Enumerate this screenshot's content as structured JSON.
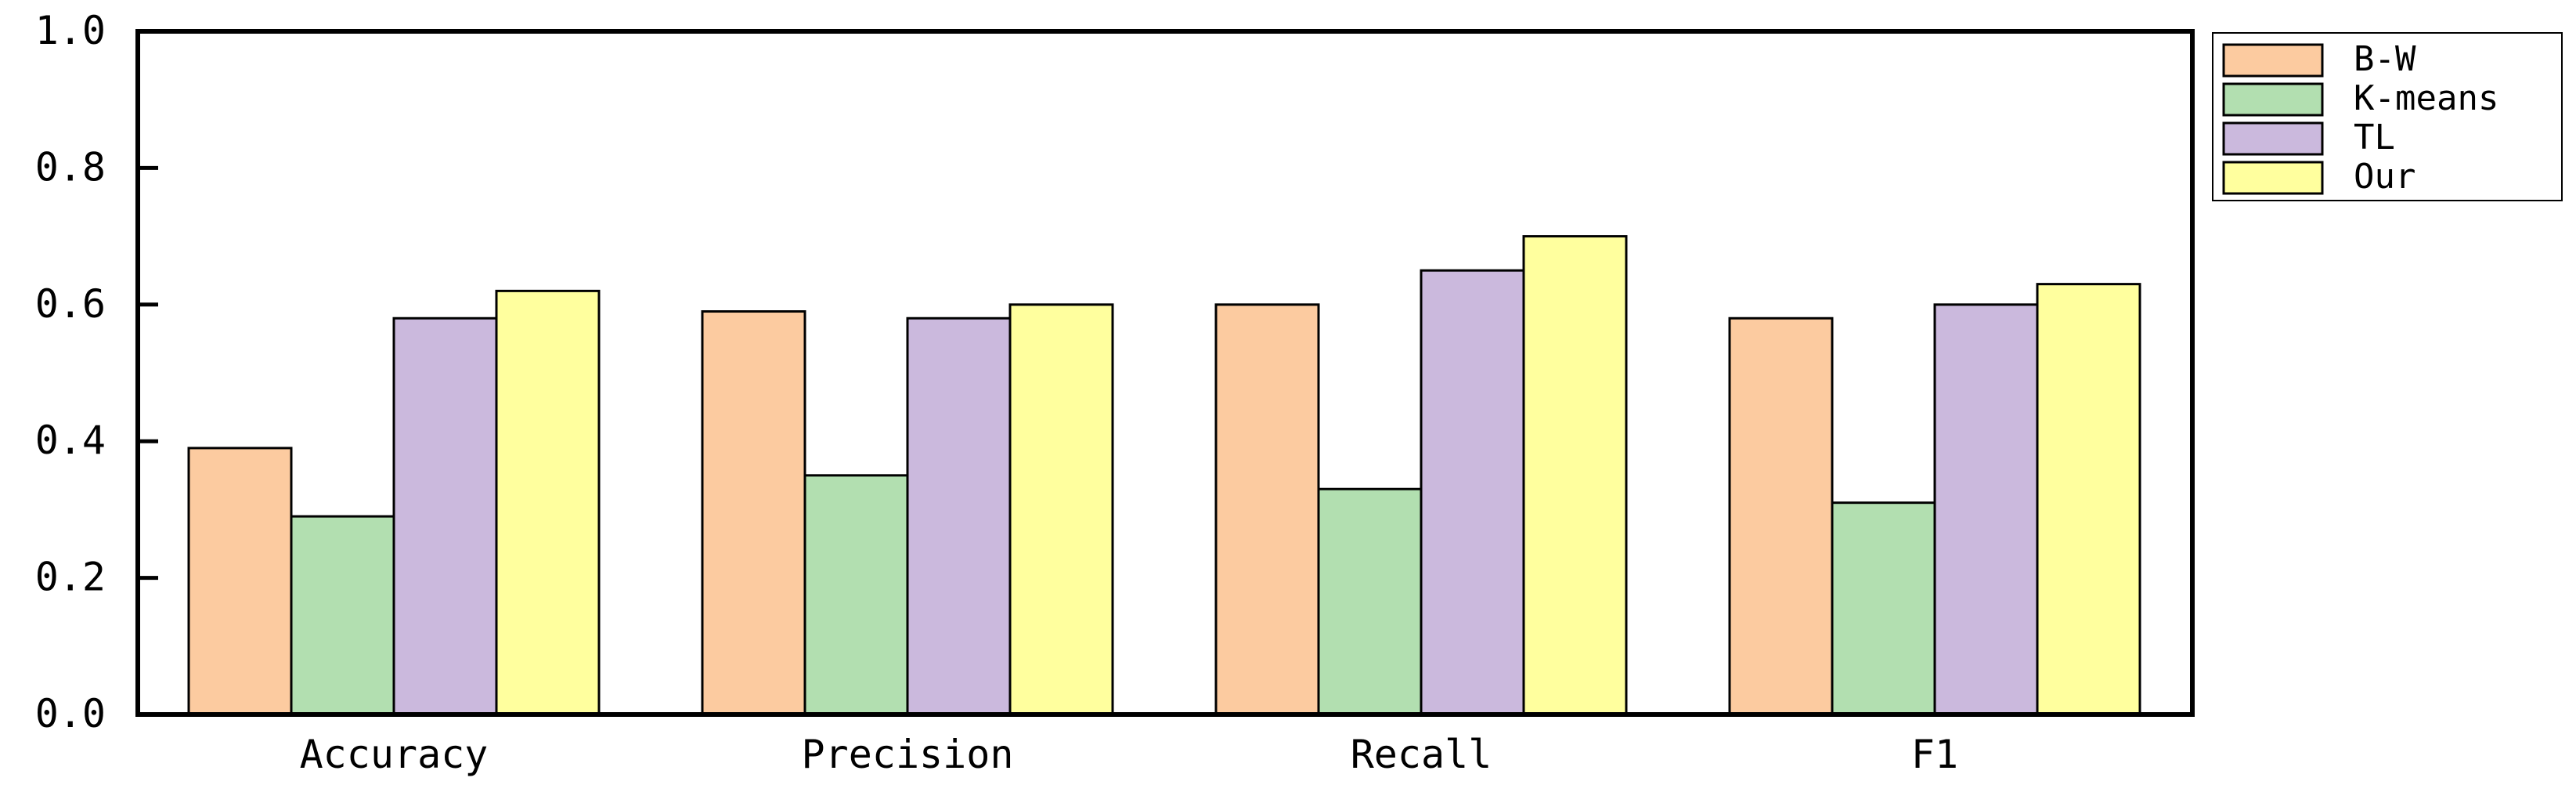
{
  "chart_data": {
    "type": "bar",
    "categories": [
      "Accuracy",
      "Precision",
      "Recall",
      "F1"
    ],
    "series": [
      {
        "name": "B-W",
        "color": "#FCCBA0",
        "values": [
          0.39,
          0.59,
          0.6,
          0.58
        ]
      },
      {
        "name": "K-means",
        "color": "#B2DFB0",
        "values": [
          0.29,
          0.35,
          0.33,
          0.31
        ]
      },
      {
        "name": "TL",
        "color": "#CBB9DD",
        "values": [
          0.58,
          0.58,
          0.65,
          0.6
        ]
      },
      {
        "name": "Our",
        "color": "#FFFF9E",
        "values": [
          0.62,
          0.6,
          0.7,
          0.63
        ]
      }
    ],
    "yticks": [
      "0.0",
      "0.2",
      "0.4",
      "0.6",
      "0.8",
      "1.0"
    ],
    "ylim": [
      0,
      1.0
    ],
    "title": "",
    "xlabel": "",
    "ylabel": "",
    "legend": "right-top",
    "grid": false
  }
}
